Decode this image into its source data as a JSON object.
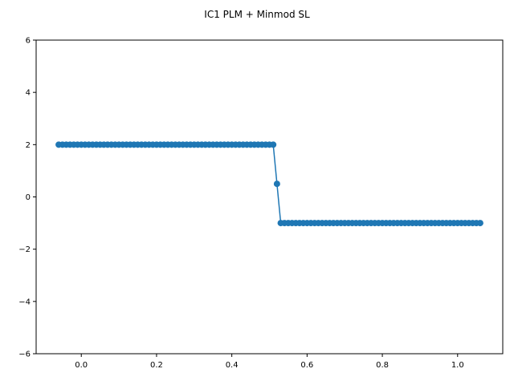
{
  "chart_data": {
    "type": "line",
    "title": "IC1 PLM + Minmod SL",
    "xlabel": "",
    "ylabel": "",
    "xlim": [
      -0.12,
      1.12
    ],
    "ylim": [
      -6,
      6
    ],
    "xticks": [
      0.0,
      0.2,
      0.4,
      0.6,
      0.8,
      1.0
    ],
    "xtick_labels": [
      "0.0",
      "0.2",
      "0.4",
      "0.6",
      "0.8",
      "1.0"
    ],
    "yticks": [
      -6,
      -4,
      -2,
      0,
      2,
      4,
      6
    ],
    "ytick_labels": [
      "−6",
      "−4",
      "−2",
      "0",
      "2",
      "4",
      "6"
    ],
    "grid": false,
    "legend": "none",
    "series": [
      {
        "color": "#1f77b4",
        "marker": "circle",
        "x": [
          -0.06,
          -0.05,
          -0.04,
          -0.03,
          -0.02,
          -0.01,
          0.0,
          0.01,
          0.02,
          0.03,
          0.04,
          0.05,
          0.06,
          0.07,
          0.08,
          0.09,
          0.1,
          0.11,
          0.12,
          0.13,
          0.14,
          0.15,
          0.16,
          0.17,
          0.18,
          0.19,
          0.2,
          0.21,
          0.22,
          0.23,
          0.24,
          0.25,
          0.26,
          0.27,
          0.28,
          0.29,
          0.3,
          0.31,
          0.32,
          0.33,
          0.34,
          0.35,
          0.36,
          0.37,
          0.38,
          0.39,
          0.4,
          0.41,
          0.42,
          0.43,
          0.44,
          0.45,
          0.46,
          0.47,
          0.48,
          0.49,
          0.5,
          0.51,
          0.52,
          0.53,
          0.54,
          0.55,
          0.56,
          0.57,
          0.58,
          0.59,
          0.6,
          0.61,
          0.62,
          0.63,
          0.64,
          0.65,
          0.66,
          0.67,
          0.68,
          0.69,
          0.7,
          0.71,
          0.72,
          0.73,
          0.74,
          0.75,
          0.76,
          0.77,
          0.78,
          0.79,
          0.8,
          0.81,
          0.82,
          0.83,
          0.84,
          0.85,
          0.86,
          0.87,
          0.88,
          0.89,
          0.9,
          0.91,
          0.92,
          0.93,
          0.94,
          0.95,
          0.96,
          0.97,
          0.98,
          0.99,
          1.0,
          1.01,
          1.02,
          1.03,
          1.04,
          1.05,
          1.06
        ],
        "y": [
          2,
          2,
          2,
          2,
          2,
          2,
          2,
          2,
          2,
          2,
          2,
          2,
          2,
          2,
          2,
          2,
          2,
          2,
          2,
          2,
          2,
          2,
          2,
          2,
          2,
          2,
          2,
          2,
          2,
          2,
          2,
          2,
          2,
          2,
          2,
          2,
          2,
          2,
          2,
          2,
          2,
          2,
          2,
          2,
          2,
          2,
          2,
          2,
          2,
          2,
          2,
          2,
          2,
          2,
          2,
          2,
          2,
          2,
          0.5,
          -1,
          -1,
          -1,
          -1,
          -1,
          -1,
          -1,
          -1,
          -1,
          -1,
          -1,
          -1,
          -1,
          -1,
          -1,
          -1,
          -1,
          -1,
          -1,
          -1,
          -1,
          -1,
          -1,
          -1,
          -1,
          -1,
          -1,
          -1,
          -1,
          -1,
          -1,
          -1,
          -1,
          -1,
          -1,
          -1,
          -1,
          -1,
          -1,
          -1,
          -1,
          -1,
          -1,
          -1,
          -1,
          -1,
          -1,
          -1,
          -1,
          -1,
          -1,
          -1,
          -1,
          -1
        ]
      }
    ]
  }
}
